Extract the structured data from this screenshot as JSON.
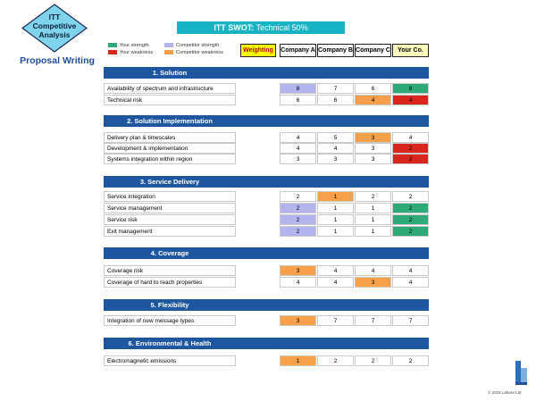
{
  "badge": {
    "line1": "ITT",
    "line2": "Competitive",
    "line3": "Analysis"
  },
  "subtitle": "Proposal Writing",
  "title": {
    "bold": "ITT SWOT:",
    "rest": " Technical 50%"
  },
  "legend": [
    {
      "label": "Your strength",
      "color": "#2eaa78"
    },
    {
      "label": "Your weakness",
      "color": "#d9261c"
    },
    {
      "label": "Competitor strength",
      "color": "#b3b3ee"
    },
    {
      "label": "Competitor weakness",
      "color": "#f6a04a"
    }
  ],
  "headers": [
    "Weighting",
    "Company A",
    "Company B",
    "Company C",
    "Your Co."
  ],
  "colors": {
    "green": "#2eaa78",
    "red": "#d9261c",
    "lavender": "#b3b3ee",
    "orange": "#f6a04a",
    "section": "#1f56a0",
    "weighting": "#ffff00",
    "yourco": "#ffffc0",
    "title": "#17b2c4"
  },
  "sections": [
    {
      "title": "1. Solution",
      "rows": [
        {
          "label": "Availability of spectrum and infrastructure",
          "a": "8",
          "b": "7",
          "c": "6",
          "y": "8"
        },
        {
          "label": "Technical risk",
          "a": "6",
          "b": "6",
          "c": "4",
          "y": "4"
        }
      ]
    },
    {
      "title": "2. Solution Implementation",
      "rows": [
        {
          "label": "Delivery plan & timescales",
          "a": "4",
          "b": "5",
          "c": "3",
          "y": "4"
        },
        {
          "label": "Development & implementation",
          "a": "4",
          "b": "4",
          "c": "3",
          "y": "2"
        },
        {
          "label": "Systems integration within region",
          "a": "3",
          "b": "3",
          "c": "3",
          "y": "2"
        }
      ]
    },
    {
      "title": "3. Service Delivery",
      "rows": [
        {
          "label": "Service integration",
          "a": "2",
          "b": "1",
          "c": "2",
          "y": "2"
        },
        {
          "label": "Service management",
          "a": "2",
          "b": "1",
          "c": "1",
          "y": "2"
        },
        {
          "label": "Service risk",
          "a": "2",
          "b": "1",
          "c": "1",
          "y": "2"
        },
        {
          "label": "Exit management",
          "a": "2",
          "b": "1",
          "c": "1",
          "y": "2"
        }
      ]
    },
    {
      "title": "4. Coverage",
      "rows": [
        {
          "label": "Coverage risk",
          "a": "3",
          "b": "4",
          "c": "4",
          "y": "4"
        },
        {
          "label": "Coverage of hard to reach properties",
          "a": "4",
          "b": "4",
          "c": "3",
          "y": "4"
        }
      ]
    },
    {
      "title": "5. Flexibility",
      "rows": [
        {
          "label": "Integration of new message types",
          "a": "3",
          "b": "7",
          "c": "7",
          "y": "7"
        }
      ]
    },
    {
      "title": "6. Environmental & Health",
      "rows": [
        {
          "label": "Electromagnetic emissions",
          "a": "1",
          "b": "2",
          "c": "2",
          "y": "2"
        }
      ]
    }
  ],
  "copyright": "© 2018 Lahara Ltd"
}
